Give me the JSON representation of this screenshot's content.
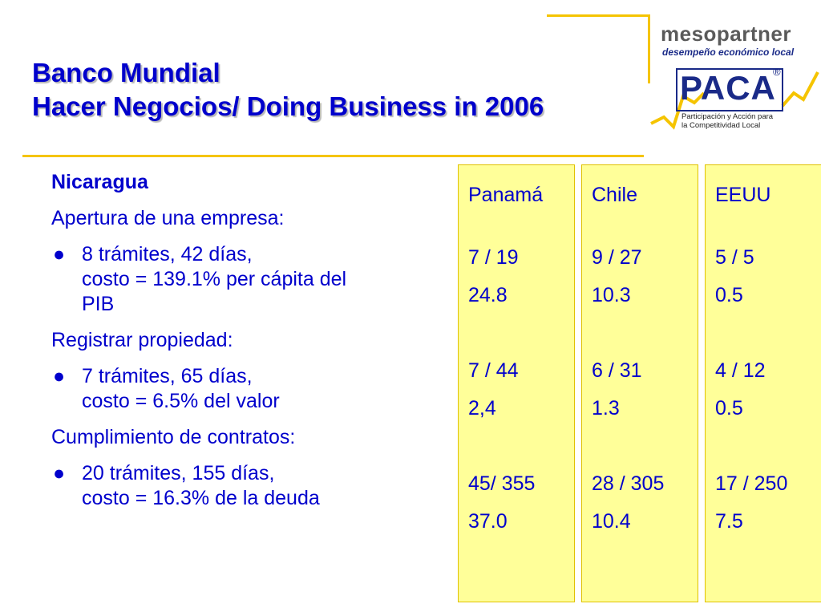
{
  "header": {
    "title_line1": "Banco Mundial",
    "title_line2": "Hacer Negocios/ Doing Business in 2006"
  },
  "logo": {
    "name": "mesopartner",
    "tagline": "desempeño económico local",
    "brand": "PACA",
    "registered": "®",
    "sub_line1": "Participación y Acción para",
    "sub_line2": "la Competitividad Local"
  },
  "main": {
    "country": "Nicaragua",
    "sections": [
      {
        "label": "Apertura de una empresa:",
        "bullet_line1": "8 trámites, 42 días,",
        "bullet_line2": "costo = 139.1% per cápita del",
        "bullet_line3": "PIB"
      },
      {
        "label": "Registrar propiedad:",
        "bullet_line1": "7 trámites, 65 días,",
        "bullet_line2": "costo = 6.5% del valor"
      },
      {
        "label": "Cumplimiento de contratos:",
        "bullet_line1": "20 trámites, 155 días,",
        "bullet_line2": "costo = 16.3% de la deuda"
      }
    ]
  },
  "comparison": [
    {
      "country": "Panamá",
      "values": [
        "7 / 19",
        "24.8",
        "7 / 44",
        "2,4",
        "45/ 355",
        "37.0"
      ]
    },
    {
      "country": "Chile",
      "values": [
        "9 / 27",
        "10.3",
        "6 / 31",
        "1.3",
        "28 / 305",
        "10.4"
      ]
    },
    {
      "country": "EEUU",
      "values": [
        "5 / 5",
        "0.5",
        "4 / 12",
        "0.5",
        "17 / 250",
        "7.5"
      ]
    }
  ],
  "colors": {
    "accent": "#f5c400",
    "text": "#0000cc",
    "column_fill": "#ffff99"
  }
}
